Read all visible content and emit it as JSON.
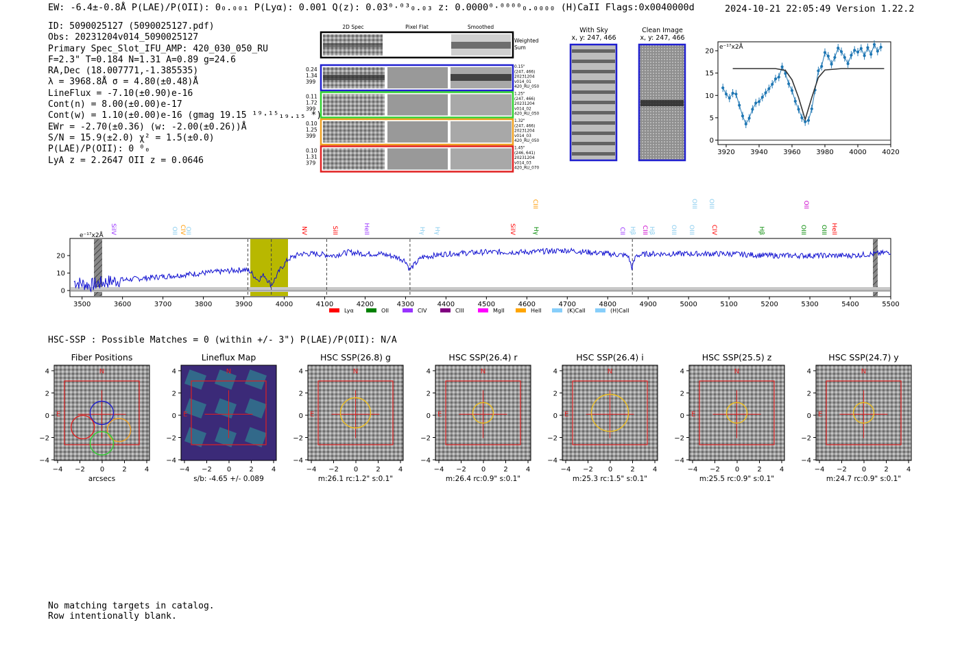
{
  "header": {
    "top_line": "EW: -6.4±-0.8Å  P(LAE)/P(OII): 0₀.₀₀₁  P(Lyα): 0.001  Q(z): 0.03⁰·⁰³₀.₀₃  z: 0.0000⁰·⁰⁰⁰⁰₀.₀₀₀₀ (H)CaII  Flags:0x0040000d",
    "timestamp_version": "2024-10-21 22:05:49  Version 1.22.2"
  },
  "info": [
    "ID: 5090025127 (5090025127.pdf)",
    "Obs: 20231204v014_5090025127",
    "Primary Spec_Slot_IFU_AMP: 420_030_050_RU",
    "F=2.3\"  T=0.184  N=1.31  A=0.89  g=24.6",
    "RA,Dec (18.007771,-1.385535)",
    "λ = 3968.8Å  σ = 4.80(±0.48)Å",
    "LineFlux = -7.10(±0.90)e-16",
    "Cont(n) = 8.00(±0.00)e-17",
    "Cont(w) = 1.10(±0.00)e-16 (gmag 19.15 ¹⁹·¹⁵₁₉.₁₅ *)",
    "EWr = -2.70(±0.36) (w: -2.00(±0.26))Å",
    "S/N = 15.9(±2.0)  χ² = 1.5(±0.0)",
    "P(LAE)/P(OII): 0 ⁰₀",
    "LyA z = 2.2647  OII z = 0.0646"
  ],
  "cutouts": {
    "col_titles": [
      "2D Spec",
      "Pixel Flat",
      "Smoothed"
    ],
    "weighted_sum_label": "Weighted Sum",
    "rows": [
      {
        "left": [
          "0.24",
          "1.34",
          "399"
        ],
        "right": [
          "0.15\"",
          "(247, 466)",
          "20231204",
          "v014_01",
          "420_RU_050"
        ],
        "color": "#1f1fcf"
      },
      {
        "left": [
          "0.11",
          "1.72",
          "399"
        ],
        "right": [
          "1.25\"",
          "(247, 466)",
          "20231204",
          "v014_02",
          "420_RU_050"
        ],
        "color": "#2fd02f"
      },
      {
        "left": [
          "0.10",
          "1.25",
          "399"
        ],
        "right": [
          "1.32\"",
          "(247, 466)",
          "20231204",
          "v014_03",
          "420_RU_050"
        ],
        "color": "#f0a020"
      },
      {
        "left": [
          "0.10",
          "1.31",
          "379"
        ],
        "right": [
          "1.45\"",
          "(246, 641)",
          "20231204",
          "v014_03",
          "420_RU_070"
        ],
        "color": "#e02020"
      }
    ]
  },
  "sky_panels": [
    {
      "title": "With Sky",
      "coords": "x, y: 247, 466"
    },
    {
      "title": "Clean Image",
      "coords": "x, y: 247, 466"
    }
  ],
  "zoom_plot": {
    "unit_label": "e⁻¹⁷x2Å",
    "x_ticks": [
      "3920",
      "3940",
      "3960",
      "3980",
      "4000",
      "4020"
    ],
    "y_ticks": [
      "0",
      "5",
      "10",
      "15",
      "20"
    ]
  },
  "full_spectrum": {
    "unit_label": "e⁻¹⁷x2Å",
    "x_ticks": [
      "3500",
      "3600",
      "3700",
      "3800",
      "3900",
      "4000",
      "4100",
      "4200",
      "4300",
      "4400",
      "4500",
      "4600",
      "4700",
      "4800",
      "4900",
      "5000",
      "5100",
      "5200",
      "5300",
      "5400",
      "5500"
    ],
    "y_ticks": [
      "0",
      "10",
      "20"
    ],
    "line_labels": [
      {
        "text": "SiIV",
        "color": "#9933ff"
      },
      {
        "text": "OII",
        "color": "#88ccee"
      },
      {
        "text": "CIV",
        "color": "#ff9900"
      },
      {
        "text": "OII",
        "color": "#88ccee"
      },
      {
        "text": "NV",
        "color": "#ff0000"
      },
      {
        "text": "SiII",
        "color": "#ff0000"
      },
      {
        "text": "HeII",
        "color": "#9933ff"
      },
      {
        "text": "Hγ",
        "color": "#88ccee"
      },
      {
        "text": "Hγ",
        "color": "#88ccee"
      },
      {
        "text": "SiIV",
        "color": "#ff0000"
      },
      {
        "text": "CIII",
        "color": "#ff9900"
      },
      {
        "text": "Hγ",
        "color": "#008800"
      },
      {
        "text": "CII",
        "color": "#9933ff"
      },
      {
        "text": "Hβ",
        "color": "#88ccee"
      },
      {
        "text": "CIII",
        "color": "#cc00cc"
      },
      {
        "text": "Hβ",
        "color": "#88ccee"
      },
      {
        "text": "OIII",
        "color": "#88ccee"
      },
      {
        "text": "OIII",
        "color": "#88ccee"
      },
      {
        "text": "OIII",
        "color": "#88ccee"
      },
      {
        "text": "OIII",
        "color": "#88ccee"
      },
      {
        "text": "CIV",
        "color": "#ff0000"
      },
      {
        "text": "Hβ",
        "color": "#008800"
      },
      {
        "text": "OII",
        "color": "#cc00cc"
      },
      {
        "text": "OIII",
        "color": "#008800"
      },
      {
        "text": "OIII",
        "color": "#008800"
      },
      {
        "text": "HeII",
        "color": "#ff0000"
      }
    ],
    "legend": [
      {
        "label": "Lyα",
        "color": "#ff0000"
      },
      {
        "label": "OII",
        "color": "#008000"
      },
      {
        "label": "CIV",
        "color": "#9933ff"
      },
      {
        "label": "CIII",
        "color": "#800080"
      },
      {
        "label": "MgII",
        "color": "#ff00ff"
      },
      {
        "label": "HeII",
        "color": "#ffa500"
      },
      {
        "label": "(K)CaII",
        "color": "#87cefa"
      },
      {
        "label": "(H)CaII",
        "color": "#87cefa"
      }
    ]
  },
  "hsc_header": "HSC-SSP : Possible Matches = 0 (within +/- 3\")  P(LAE)/P(OII): N/A",
  "imaging_panels": [
    {
      "title": "Fiber Positions",
      "caption": "arcsecs"
    },
    {
      "title": "Lineflux Map",
      "caption": "s/b: -4.65 +/- 0.089"
    },
    {
      "title": "HSC SSP(26.8) g",
      "caption": "m:26.1 rc:1.2\"  s:0.1\""
    },
    {
      "title": "HSC SSP(26.4) r",
      "caption": "m:26.4 rc:0.9\"  s:0.1\""
    },
    {
      "title": "HSC SSP(26.4) i",
      "caption": "m:25.3 rc:1.5\"  s:0.1\""
    },
    {
      "title": "HSC SSP(25.5) z",
      "caption": "m:25.5 rc:0.9\"  s:0.1\""
    },
    {
      "title": "HSC SSP(24.7) y",
      "caption": "m:24.7 rc:0.9\"  s:0.1\""
    }
  ],
  "imaging_axes": {
    "ticks": [
      "4",
      "2",
      "0",
      "−2",
      "−4"
    ],
    "x_ticks": [
      "−4",
      "−2",
      "0",
      "2",
      "4"
    ],
    "north": "N",
    "east": "E"
  },
  "footer": [
    "No matching targets in catalog.",
    "Row intentionally blank."
  ],
  "chart_data": [
    {
      "type": "line",
      "title": "",
      "xlabel": "",
      "ylabel": "e⁻¹⁷x2Å",
      "xlim": [
        3915,
        4020
      ],
      "ylim": [
        -1,
        22
      ],
      "series": [
        {
          "name": "",
          "x": [
            3918,
            3920,
            3922,
            3924,
            3926,
            3928,
            3930,
            3932,
            3934,
            3936,
            3938,
            3940,
            3942,
            3944,
            3946,
            3948,
            3950,
            3952,
            3954,
            3956,
            3958,
            3960,
            3962,
            3964,
            3966,
            3968,
            3970,
            3972,
            3974,
            3976,
            3978,
            3980,
            3982,
            3984,
            3986,
            3988,
            3990,
            3992,
            3994,
            3996,
            3998,
            4000,
            4002,
            4004,
            4006,
            4008,
            4010,
            4012,
            4014
          ],
          "y": [
            11.7,
            10.3,
            9.4,
            10.5,
            10.3,
            7.8,
            5.4,
            3.6,
            4.9,
            6.9,
            8.3,
            8.6,
            9.6,
            10.6,
            11.5,
            12.5,
            13.7,
            14.1,
            16.4,
            14.9,
            12.6,
            11.1,
            8.7,
            6.9,
            5.0,
            4.1,
            4.4,
            7.0,
            11.2,
            15.5,
            16.5,
            19.6,
            18.8,
            17.0,
            18.5,
            20.6,
            19.8,
            18.5,
            17.1,
            19.0,
            20.1,
            19.7,
            20.5,
            18.9,
            20.7,
            19.2,
            21.4,
            19.9,
            20.8
          ]
        },
        {
          "name": "",
          "x": [
            3924,
            3940,
            3950,
            3956,
            3960,
            3964,
            3968,
            3972,
            3976,
            3980,
            3990,
            4000,
            4016
          ],
          "y": [
            16.0,
            16.0,
            16.0,
            15.6,
            13.5,
            9.5,
            4.6,
            9.5,
            14.0,
            15.7,
            16.0,
            16.0,
            16.0
          ]
        }
      ]
    },
    {
      "type": "line",
      "title": "",
      "xlabel": "",
      "ylabel": "e⁻¹⁷x2Å",
      "xlim": [
        3470,
        5500
      ],
      "ylim": [
        -3,
        30
      ],
      "series": [
        {
          "name": "",
          "x": [
            3480,
            3520,
            3560,
            3600,
            3650,
            3700,
            3750,
            3800,
            3850,
            3900,
            3915,
            3935,
            3950,
            3968,
            3990,
            4010,
            4040,
            4080,
            4120,
            4160,
            4200,
            4240,
            4280,
            4300,
            4310,
            4340,
            4400,
            4500,
            4600,
            4700,
            4800,
            4850,
            4860,
            4870,
            4900,
            5000,
            5100,
            5200,
            5300,
            5400,
            5460,
            5500
          ],
          "y": [
            5,
            3,
            5,
            6,
            7,
            8,
            9,
            10,
            11,
            12,
            11,
            6,
            9,
            3,
            12,
            18,
            21,
            21,
            20,
            22,
            21,
            21,
            19,
            17,
            12,
            19,
            21,
            22,
            22,
            23,
            21,
            20,
            13,
            20,
            21,
            21,
            21,
            20,
            20,
            20,
            21,
            22
          ]
        }
      ]
    }
  ]
}
